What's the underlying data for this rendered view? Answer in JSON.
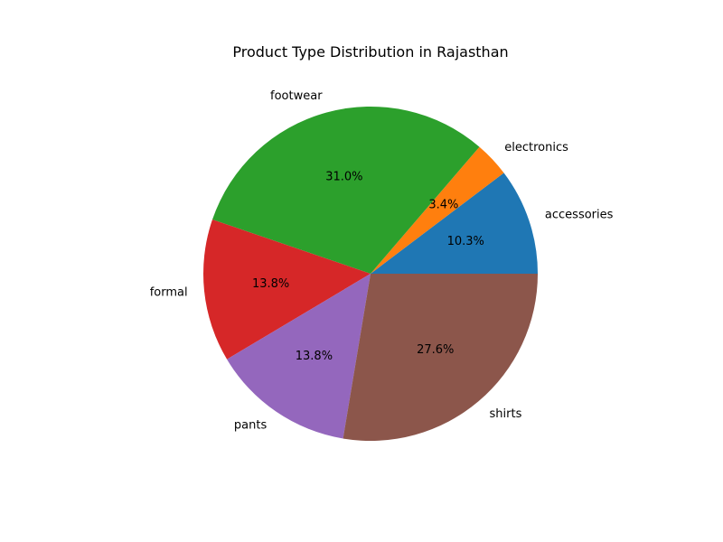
{
  "chart_data": {
    "type": "pie",
    "title": "Product Type Distribution in Rajasthan",
    "start_angle_deg": 0,
    "direction": "counterclockwise",
    "slices": [
      {
        "label": "accessories",
        "value": 10.3,
        "pct_label": "10.3%",
        "color": "#1f77b4"
      },
      {
        "label": "electronics",
        "value": 3.4,
        "pct_label": "3.4%",
        "color": "#ff7f0e"
      },
      {
        "label": "footwear",
        "value": 31.0,
        "pct_label": "31.0%",
        "color": "#2ca02c"
      },
      {
        "label": "formal",
        "value": 13.8,
        "pct_label": "13.8%",
        "color": "#d62728"
      },
      {
        "label": "pants",
        "value": 13.8,
        "pct_label": "13.8%",
        "color": "#9467bd"
      },
      {
        "label": "shirts",
        "value": 27.6,
        "pct_label": "27.6%",
        "color": "#8c564b"
      }
    ]
  }
}
